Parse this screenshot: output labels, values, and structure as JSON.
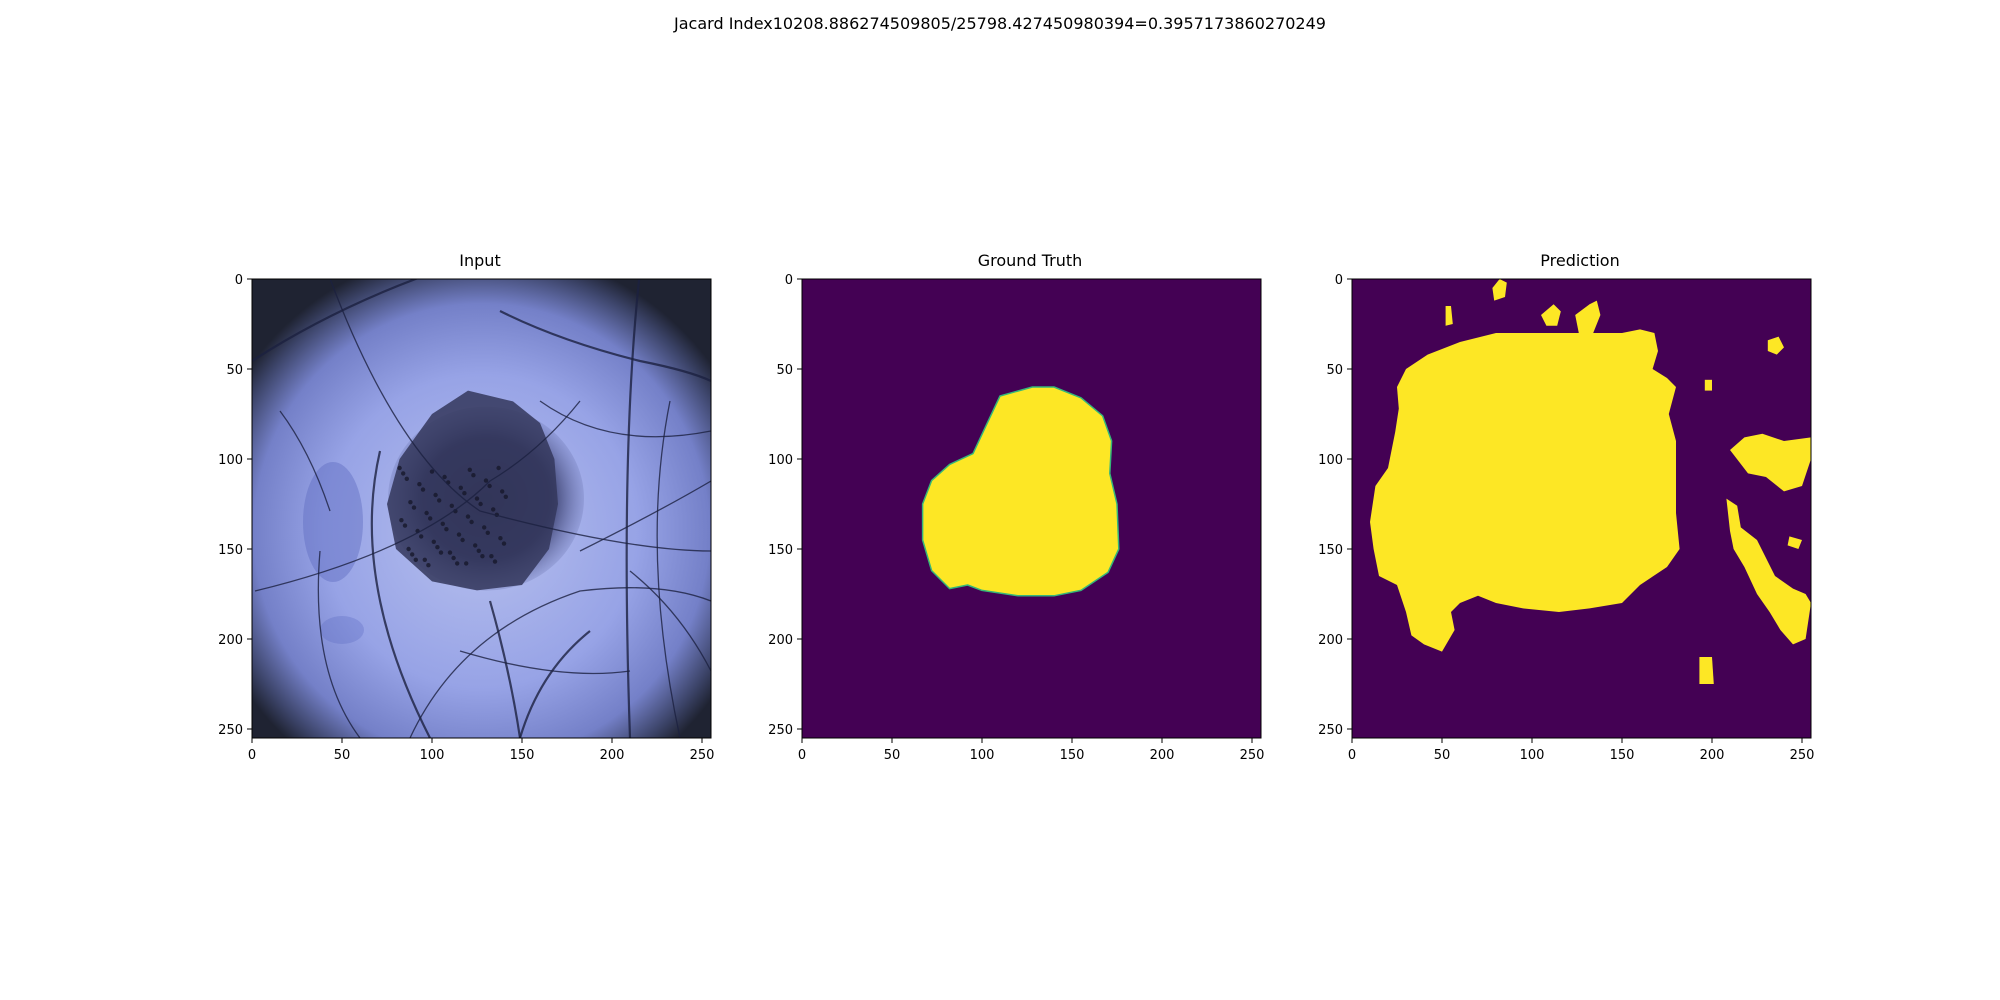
{
  "figure": {
    "suptitle": "Jacard Index10208.886274509805/25798.427450980394=0.3957173860270249"
  },
  "chart_data": [
    {
      "type": "heatmap",
      "title": "Input",
      "xlim": [
        0,
        255
      ],
      "ylim": [
        255,
        0
      ],
      "xticks": [
        0,
        50,
        100,
        150,
        200,
        250
      ],
      "yticks": [
        0,
        50,
        100,
        150,
        200,
        250
      ],
      "content": "dermoscopy-image"
    },
    {
      "type": "heatmap",
      "title": "Ground Truth",
      "xlim": [
        0,
        255
      ],
      "ylim": [
        255,
        0
      ],
      "xticks": [
        0,
        50,
        100,
        150,
        200,
        250
      ],
      "yticks": [
        0,
        50,
        100,
        150,
        200,
        250
      ],
      "colors": {
        "background": "#440154",
        "foreground": "#fde725",
        "edge": "#35b779"
      },
      "mask_outline": [
        [
          110,
          65
        ],
        [
          128,
          60
        ],
        [
          140,
          60
        ],
        [
          155,
          66
        ],
        [
          167,
          76
        ],
        [
          172,
          90
        ],
        [
          171,
          108
        ],
        [
          175,
          125
        ],
        [
          176,
          150
        ],
        [
          170,
          163
        ],
        [
          155,
          173
        ],
        [
          140,
          176
        ],
        [
          120,
          176
        ],
        [
          100,
          173
        ],
        [
          92,
          170
        ],
        [
          82,
          172
        ],
        [
          72,
          162
        ],
        [
          67,
          145
        ],
        [
          67,
          125
        ],
        [
          72,
          112
        ],
        [
          82,
          103
        ],
        [
          95,
          97
        ],
        [
          102,
          82
        ]
      ]
    },
    {
      "type": "heatmap",
      "title": "Prediction",
      "xlim": [
        0,
        255
      ],
      "ylim": [
        255,
        0
      ],
      "xticks": [
        0,
        50,
        100,
        150,
        200,
        250
      ],
      "yticks": [
        0,
        50,
        100,
        150,
        200,
        250
      ],
      "colors": {
        "background": "#440154",
        "foreground": "#fde725"
      },
      "mask_regions": [
        [
          [
            42,
            42
          ],
          [
            60,
            35
          ],
          [
            80,
            30
          ],
          [
            100,
            30
          ],
          [
            120,
            30
          ],
          [
            150,
            30
          ],
          [
            160,
            28
          ],
          [
            168,
            30
          ],
          [
            170,
            40
          ],
          [
            167,
            50
          ],
          [
            175,
            55
          ],
          [
            180,
            60
          ],
          [
            176,
            75
          ],
          [
            180,
            90
          ],
          [
            180,
            110
          ],
          [
            180,
            130
          ],
          [
            182,
            150
          ],
          [
            175,
            160
          ],
          [
            160,
            170
          ],
          [
            150,
            180
          ],
          [
            132,
            183
          ],
          [
            115,
            185
          ],
          [
            95,
            183
          ],
          [
            80,
            180
          ],
          [
            70,
            176
          ],
          [
            60,
            180
          ],
          [
            55,
            185
          ],
          [
            57,
            195
          ],
          [
            50,
            207
          ],
          [
            40,
            203
          ],
          [
            33,
            198
          ],
          [
            30,
            185
          ],
          [
            25,
            170
          ],
          [
            15,
            165
          ],
          [
            12,
            150
          ],
          [
            10,
            135
          ],
          [
            13,
            115
          ],
          [
            20,
            105
          ],
          [
            22,
            95
          ],
          [
            24,
            85
          ],
          [
            26,
            72
          ],
          [
            25,
            60
          ],
          [
            30,
            50
          ]
        ],
        [
          [
            124,
            20
          ],
          [
            132,
            14
          ],
          [
            136,
            12
          ],
          [
            138,
            20
          ],
          [
            134,
            30
          ],
          [
            126,
            30
          ]
        ],
        [
          [
            105,
            20
          ],
          [
            112,
            14
          ],
          [
            116,
            18
          ],
          [
            114,
            26
          ],
          [
            108,
            26
          ]
        ],
        [
          [
            78,
            5
          ],
          [
            82,
            0
          ],
          [
            86,
            2
          ],
          [
            85,
            10
          ],
          [
            79,
            12
          ]
        ],
        [
          [
            210,
            95
          ],
          [
            218,
            88
          ],
          [
            228,
            86
          ],
          [
            240,
            90
          ],
          [
            255,
            88
          ],
          [
            255,
            100
          ],
          [
            250,
            115
          ],
          [
            240,
            118
          ],
          [
            230,
            110
          ],
          [
            220,
            108
          ]
        ],
        [
          [
            208,
            122
          ],
          [
            214,
            126
          ],
          [
            216,
            138
          ],
          [
            225,
            145
          ],
          [
            230,
            155
          ],
          [
            235,
            165
          ],
          [
            245,
            172
          ],
          [
            252,
            175
          ],
          [
            255,
            180
          ],
          [
            252,
            200
          ],
          [
            245,
            203
          ],
          [
            238,
            195
          ],
          [
            232,
            185
          ],
          [
            225,
            175
          ],
          [
            218,
            160
          ],
          [
            212,
            150
          ],
          [
            210,
            140
          ]
        ],
        [
          [
            193,
            210
          ],
          [
            200,
            210
          ],
          [
            201,
            225
          ],
          [
            193,
            225
          ]
        ],
        [
          [
            231,
            34
          ],
          [
            237,
            32
          ],
          [
            240,
            38
          ],
          [
            236,
            42
          ],
          [
            231,
            40
          ]
        ],
        [
          [
            196,
            56
          ],
          [
            200,
            56
          ],
          [
            200,
            62
          ],
          [
            196,
            62
          ]
        ],
        [
          [
            52,
            15
          ],
          [
            55,
            15
          ],
          [
            56,
            25
          ],
          [
            52,
            26
          ]
        ],
        [
          [
            243,
            143
          ],
          [
            250,
            145
          ],
          [
            248,
            150
          ],
          [
            242,
            148
          ]
        ]
      ]
    }
  ]
}
